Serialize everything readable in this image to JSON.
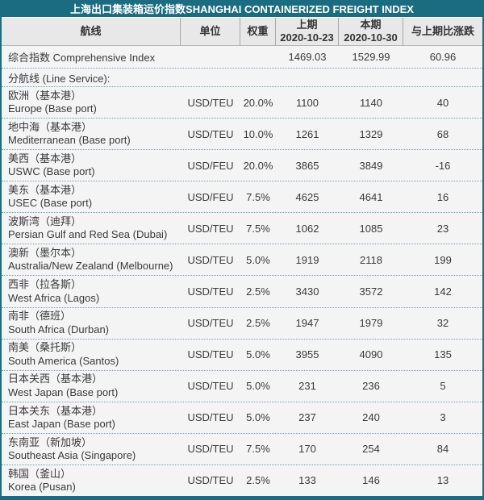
{
  "colors": {
    "accent_teal": "#1b6c80",
    "header_bg": "#e8e8e8",
    "body_bg": "#f4f4f4",
    "dotted_separator": "#6ea0b0",
    "title_text": "#ffffff",
    "body_text": "#3a3a3a"
  },
  "chart_data": {
    "type": "table",
    "title": "上海出口集装箱运价指数SHANGHAI CONTAINERIZED FREIGHT INDEX",
    "header": {
      "route": "航线",
      "unit": "单位",
      "weight": "权重",
      "prev_label": "上期",
      "prev_date": "2020-10-23",
      "cur_label": "本期",
      "cur_date": "2020-10-30",
      "change": "与上期比涨跌"
    },
    "comprehensive": {
      "name": "综合指数 Comprehensive Index",
      "unit": "",
      "weight": "",
      "prev": "1469.03",
      "cur": "1529.99",
      "change": "60.96"
    },
    "section_label": "分航线 (Line Service):",
    "rows": [
      {
        "cn": "欧洲（基本港）",
        "en": "Europe (Base port)",
        "unit": "USD/TEU",
        "weight": "20.0%",
        "prev": "1100",
        "cur": "1140",
        "change": "40"
      },
      {
        "cn": "地中海（基本港）",
        "en": "Mediterranean (Base port)",
        "unit": "USD/TEU",
        "weight": "10.0%",
        "prev": "1261",
        "cur": "1329",
        "change": "68"
      },
      {
        "cn": "美西（基本港）",
        "en": "USWC (Base port)",
        "unit": "USD/FEU",
        "weight": "20.0%",
        "prev": "3865",
        "cur": "3849",
        "change": "-16"
      },
      {
        "cn": "美东（基本港）",
        "en": "USEC (Base port)",
        "unit": "USD/FEU",
        "weight": "7.5%",
        "prev": "4625",
        "cur": "4641",
        "change": "16"
      },
      {
        "cn": "波斯湾（迪拜）",
        "en": "Persian Gulf and Red Sea (Dubai)",
        "unit": "USD/TEU",
        "weight": "7.5%",
        "prev": "1062",
        "cur": "1085",
        "change": "23"
      },
      {
        "cn": "澳新（墨尔本）",
        "en": "Australia/New Zealand (Melbourne)",
        "unit": "USD/TEU",
        "weight": "5.0%",
        "prev": "1919",
        "cur": "2118",
        "change": "199"
      },
      {
        "cn": "西非（拉各斯）",
        "en": "West Africa (Lagos)",
        "unit": "USD/TEU",
        "weight": "2.5%",
        "prev": "3430",
        "cur": "3572",
        "change": "142"
      },
      {
        "cn": "南非（德班）",
        "en": "South Africa (Durban)",
        "unit": "USD/TEU",
        "weight": "2.5%",
        "prev": "1947",
        "cur": "1979",
        "change": "32"
      },
      {
        "cn": "南美（桑托斯）",
        "en": "South America (Santos)",
        "unit": "USD/TEU",
        "weight": "5.0%",
        "prev": "3955",
        "cur": "4090",
        "change": "135"
      },
      {
        "cn": "日本关西（基本港）",
        "en": "West Japan (Base port)",
        "unit": "USD/TEU",
        "weight": "5.0%",
        "prev": "231",
        "cur": "236",
        "change": "5"
      },
      {
        "cn": "日本关东（基本港）",
        "en": "East Japan (Base port)",
        "unit": "USD/TEU",
        "weight": "5.0%",
        "prev": "237",
        "cur": "240",
        "change": "3"
      },
      {
        "cn": "东南亚（新加坡）",
        "en": "Southeast Asia (Singapore)",
        "unit": "USD/TEU",
        "weight": "7.5%",
        "prev": "170",
        "cur": "254",
        "change": "84"
      },
      {
        "cn": "韩国（釜山）",
        "en": "Korea (Pusan)",
        "unit": "USD/TEU",
        "weight": "2.5%",
        "prev": "133",
        "cur": "146",
        "change": "13"
      }
    ]
  }
}
